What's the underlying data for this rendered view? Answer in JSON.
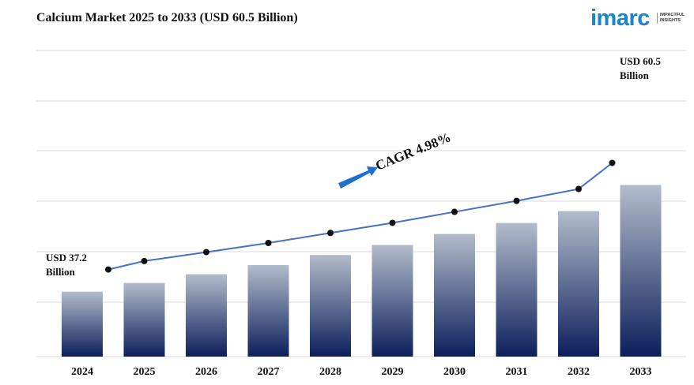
{
  "title": "Calcium Market 2025 to 2033 (USD 60.5 Billion)",
  "logo": {
    "word": "imarc",
    "tagline_1": "IMPACTFUL",
    "tagline_2": "INSIGHTS"
  },
  "colors": {
    "bar_top": "#b3bccb",
    "bar_bottom": "#0c1f5c",
    "line": "#4472c4",
    "marker": "#111111",
    "arrow": "#1f6fd1",
    "grid": "#d9d9d9"
  },
  "chart_data": {
    "type": "bar",
    "categories": [
      "2024",
      "2025",
      "2026",
      "2027",
      "2028",
      "2029",
      "2030",
      "2031",
      "2032",
      "2033"
    ],
    "values": [
      37.2,
      39.1,
      41.0,
      43.0,
      45.2,
      47.4,
      49.8,
      52.2,
      54.8,
      60.5
    ],
    "trend_line": [
      37.2,
      39.05,
      41.0,
      43.0,
      45.2,
      47.4,
      49.8,
      52.2,
      54.8,
      60.5
    ],
    "grid": true,
    "annotations": {
      "start_label_1": "USD 37.2",
      "start_label_2": "Billion",
      "end_label_1": "USD 60.5",
      "end_label_2": "Billion",
      "cagr": "CAGR 4.98%"
    }
  }
}
